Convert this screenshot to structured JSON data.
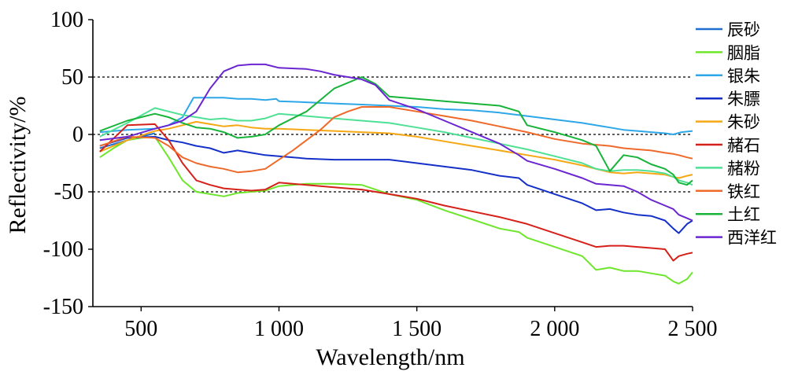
{
  "chart_data": {
    "type": "line",
    "xlabel": "Wavelength/nm",
    "ylabel": "Reflectivity/%",
    "xlim": [
      325,
      2500
    ],
    "ylim": [
      -150,
      100
    ],
    "x_ticks": [
      500,
      1000,
      1500,
      2000,
      2500
    ],
    "x_tick_labels": [
      "500",
      "1 000",
      "1 500",
      "2 000",
      "2 500"
    ],
    "y_ticks": [
      100,
      50,
      0,
      -50,
      -100,
      -150
    ],
    "y_tick_labels": [
      "100",
      "50",
      "0",
      "-50",
      "-100",
      "-150"
    ],
    "reference_lines": [
      50,
      0,
      -50
    ],
    "legend_position": "right",
    "series": [
      {
        "name": "辰砂",
        "color": "#1f6fd0",
        "x": [
          350,
          450,
          550
        ],
        "y": [
          -12,
          -5,
          1
        ]
      },
      {
        "name": "胭脂",
        "color": "#6ee62c",
        "x": [
          350,
          400,
          450,
          500,
          550,
          600,
          650,
          700,
          750,
          800,
          850,
          900,
          950,
          1000,
          1100,
          1200,
          1300,
          1400,
          1500,
          1600,
          1700,
          1800,
          1870,
          1900,
          2000,
          2100,
          2150,
          2200,
          2250,
          2300,
          2350,
          2400,
          2430,
          2450,
          2480,
          2500
        ],
        "y": [
          -20,
          -12,
          -5,
          -3,
          -2,
          -20,
          -40,
          -50,
          -52,
          -54,
          -51,
          -50,
          -49,
          -45,
          -43,
          -43,
          -44,
          -52,
          -57,
          -66,
          -74,
          -82,
          -85,
          -90,
          -98,
          -106,
          -118,
          -116,
          -119,
          -119,
          -121,
          -123,
          -128,
          -130,
          -126,
          -120
        ]
      },
      {
        "name": "银朱",
        "color": "#2ea7e8",
        "x": [
          350,
          450,
          550,
          600,
          650,
          690,
          750,
          800,
          850,
          900,
          950,
          990,
          1000,
          1100,
          1200,
          1300,
          1400,
          1500,
          1600,
          1700,
          1800,
          1900,
          2000,
          2100,
          2200,
          2250,
          2300,
          2350,
          2400,
          2430,
          2460,
          2500
        ],
        "y": [
          2,
          4,
          5,
          8,
          15,
          32,
          32,
          32,
          31,
          31,
          30,
          31,
          29,
          28,
          27,
          26,
          25,
          24,
          22,
          21,
          19,
          16,
          13,
          10,
          6,
          4,
          3,
          2,
          1,
          0,
          2,
          3
        ]
      },
      {
        "name": "朱膘",
        "color": "#1530c8",
        "x": [
          350,
          450,
          550,
          600,
          650,
          700,
          750,
          800,
          850,
          900,
          950,
          1000,
          1100,
          1200,
          1300,
          1400,
          1500,
          1600,
          1700,
          1800,
          1870,
          1900,
          2000,
          2100,
          2150,
          2200,
          2250,
          2300,
          2350,
          2400,
          2430,
          2450,
          2480,
          2500
        ],
        "y": [
          -10,
          -3,
          -2,
          -5,
          -7,
          -10,
          -12,
          -16,
          -14,
          -16,
          -18,
          -19,
          -21,
          -22,
          -22,
          -22,
          -25,
          -28,
          -31,
          -36,
          -38,
          -44,
          -52,
          -60,
          -66,
          -65,
          -68,
          -70,
          -71,
          -75,
          -82,
          -86,
          -78,
          -75
        ]
      },
      {
        "name": "朱砂",
        "color": "#f5a814",
        "x": [
          350,
          450,
          550,
          600,
          650,
          700,
          750,
          800,
          850,
          900,
          950,
          1000,
          1100,
          1200,
          1300,
          1400,
          1500,
          1600,
          1700,
          1800,
          1900,
          2000,
          2100,
          2200,
          2250,
          2300,
          2350,
          2400,
          2430,
          2450,
          2480,
          2500
        ],
        "y": [
          -15,
          -5,
          3,
          5,
          8,
          11,
          9,
          7,
          8,
          6,
          5,
          5,
          4,
          3,
          2,
          1,
          -2,
          -6,
          -10,
          -14,
          -18,
          -22,
          -27,
          -33,
          -34,
          -33,
          -34,
          -35,
          -37,
          -38,
          -36,
          -35
        ]
      },
      {
        "name": "赭石",
        "color": "#d6201a",
        "x": [
          350,
          450,
          550,
          600,
          650,
          700,
          750,
          800,
          850,
          900,
          950,
          1000,
          1100,
          1200,
          1300,
          1400,
          1500,
          1600,
          1700,
          1800,
          1900,
          2000,
          2100,
          2150,
          2200,
          2250,
          2300,
          2350,
          2400,
          2430,
          2450,
          2480,
          2500
        ],
        "y": [
          -15,
          8,
          9,
          -5,
          -25,
          -40,
          -44,
          -47,
          -48,
          -49,
          -48,
          -42,
          -44,
          -46,
          -48,
          -52,
          -56,
          -62,
          -67,
          -72,
          -78,
          -86,
          -94,
          -98,
          -97,
          -97,
          -98,
          -99,
          -100,
          -110,
          -106,
          -104,
          -103
        ]
      },
      {
        "name": "赭粉",
        "color": "#4ee094",
        "x": [
          350,
          450,
          550,
          600,
          650,
          700,
          750,
          800,
          850,
          900,
          950,
          1000,
          1100,
          1200,
          1300,
          1400,
          1500,
          1600,
          1700,
          1800,
          1900,
          2000,
          2100,
          2150,
          2200,
          2250,
          2300,
          2350,
          2400,
          2430,
          2450,
          2480,
          2500
        ],
        "y": [
          -2,
          10,
          23,
          20,
          17,
          15,
          13,
          14,
          12,
          12,
          14,
          18,
          16,
          14,
          12,
          10,
          6,
          2,
          -3,
          -8,
          -13,
          -19,
          -25,
          -30,
          -32,
          -31,
          -31,
          -32,
          -34,
          -37,
          -40,
          -42,
          -44
        ]
      },
      {
        "name": "铁红",
        "color": "#ef6a2a",
        "x": [
          350,
          450,
          550,
          600,
          650,
          700,
          750,
          800,
          850,
          900,
          950,
          1000,
          1050,
          1100,
          1150,
          1200,
          1250,
          1300,
          1350,
          1400,
          1500,
          1600,
          1700,
          1800,
          1900,
          2000,
          2100,
          2200,
          2250,
          2300,
          2350,
          2400,
          2430,
          2450,
          2480,
          2500
        ],
        "y": [
          -10,
          -2,
          -3,
          -10,
          -20,
          -25,
          -28,
          -30,
          -33,
          -32,
          -30,
          -22,
          -14,
          -5,
          4,
          15,
          20,
          24,
          24,
          24,
          20,
          16,
          12,
          7,
          2,
          -4,
          -8,
          -10,
          -12,
          -13,
          -14,
          -16,
          -17,
          -18,
          -20,
          -21
        ]
      },
      {
        "name": "土红",
        "color": "#18b43a",
        "x": [
          350,
          450,
          550,
          600,
          650,
          700,
          750,
          800,
          850,
          900,
          950,
          1000,
          1100,
          1200,
          1300,
          1350,
          1400,
          1500,
          1600,
          1700,
          1800,
          1870,
          1900,
          2000,
          2100,
          2150,
          2200,
          2250,
          2300,
          2350,
          2400,
          2430,
          2450,
          2480,
          2500
        ],
        "y": [
          3,
          12,
          18,
          15,
          10,
          6,
          5,
          2,
          -3,
          -2,
          0,
          8,
          20,
          40,
          50,
          44,
          33,
          31,
          29,
          27,
          25,
          20,
          8,
          2,
          -5,
          -10,
          -32,
          -18,
          -20,
          -26,
          -30,
          -35,
          -42,
          -44,
          -40
        ]
      },
      {
        "name": "西洋红",
        "color": "#6a26d0",
        "x": [
          350,
          450,
          550,
          600,
          650,
          700,
          750,
          800,
          850,
          900,
          950,
          1000,
          1100,
          1150,
          1200,
          1300,
          1350,
          1400,
          1500,
          1600,
          1700,
          1800,
          1870,
          1900,
          2000,
          2100,
          2150,
          2200,
          2250,
          2300,
          2350,
          2400,
          2430,
          2450,
          2480,
          2500
        ],
        "y": [
          -5,
          -2,
          5,
          8,
          12,
          20,
          40,
          55,
          60,
          61,
          61,
          58,
          57,
          55,
          52,
          48,
          43,
          30,
          22,
          12,
          2,
          -8,
          -18,
          -23,
          -30,
          -38,
          -43,
          -44,
          -45,
          -50,
          -57,
          -62,
          -65,
          -70,
          -73,
          -75
        ]
      }
    ]
  }
}
